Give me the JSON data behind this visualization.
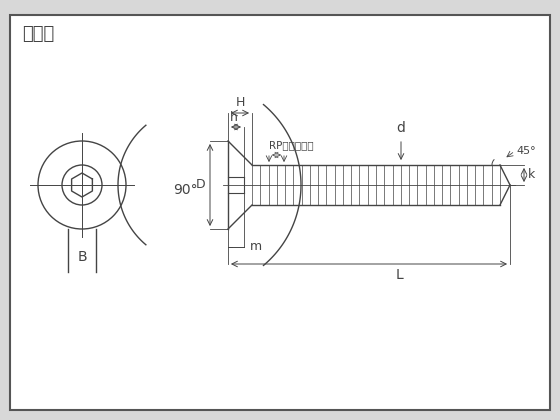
{
  "title": "寸法図",
  "bg_color": "#ffffff",
  "border_color": "#555555",
  "line_color": "#444444",
  "fig_bg": "#d8d8d8",
  "labels": {
    "H": "H",
    "h": "h",
    "d": "d",
    "D": "D",
    "k": "k",
    "m": "m",
    "L": "L",
    "B": "B",
    "angle_head": "90°",
    "angle_tip": "45°",
    "RP_label": "RP（ねじ径）"
  }
}
